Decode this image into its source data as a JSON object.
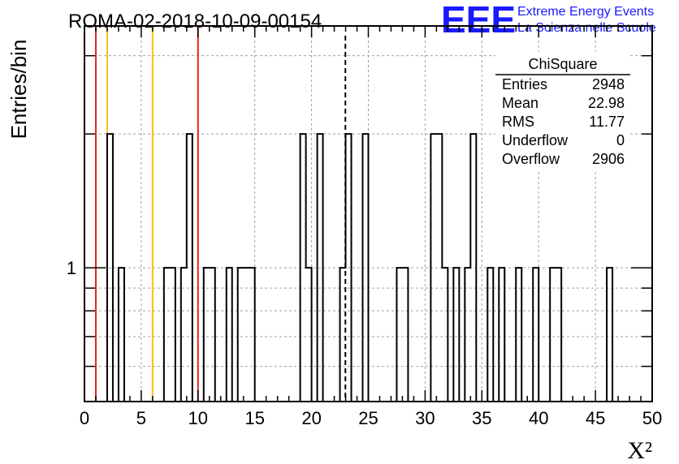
{
  "header": {
    "title": "ROMA-02-2018-10-09-00154",
    "logo_text": "EEE",
    "logo_line1": "Extreme Energy Events",
    "logo_line2": "La Scienza nelle Scuole"
  },
  "stats": {
    "name": "ChiSquare",
    "rows": [
      {
        "label": "Entries",
        "value": "2948"
      },
      {
        "label": "Mean",
        "value": "22.98"
      },
      {
        "label": "RMS",
        "value": "11.77"
      },
      {
        "label": "Underflow",
        "value": "0"
      },
      {
        "label": "Overflow",
        "value": "2906"
      }
    ]
  },
  "colors": {
    "histogram": "#000000",
    "red_line": "#e8261e",
    "yellow_line": "#f5c21b",
    "grid": "#a0a0a0"
  },
  "chart_data": {
    "type": "bar",
    "title": "ROMA-02-2018-10-09-00154",
    "xlabel": "X²",
    "ylabel": "Entries/bin",
    "xlim": [
      0,
      50
    ],
    "y_tick_labels": [
      "1"
    ],
    "x_tick_labels": [
      "0",
      "5",
      "10",
      "15",
      "20",
      "25",
      "30",
      "35",
      "40",
      "45",
      "50"
    ],
    "bin_width": 0.5,
    "grid": true,
    "bins": [
      {
        "x": 2.0,
        "count": 2
      },
      {
        "x": 3.0,
        "count": 1
      },
      {
        "x": 7.0,
        "count": 1
      },
      {
        "x": 7.5,
        "count": 1
      },
      {
        "x": 8.5,
        "count": 1
      },
      {
        "x": 9.0,
        "count": 2
      },
      {
        "x": 10.5,
        "count": 1
      },
      {
        "x": 11.0,
        "count": 1
      },
      {
        "x": 12.5,
        "count": 1
      },
      {
        "x": 13.5,
        "count": 1
      },
      {
        "x": 14.0,
        "count": 1
      },
      {
        "x": 14.5,
        "count": 1
      },
      {
        "x": 19.0,
        "count": 2
      },
      {
        "x": 19.5,
        "count": 1
      },
      {
        "x": 20.5,
        "count": 2
      },
      {
        "x": 22.5,
        "count": 1
      },
      {
        "x": 23.0,
        "count": 2
      },
      {
        "x": 24.5,
        "count": 2
      },
      {
        "x": 27.5,
        "count": 1
      },
      {
        "x": 28.0,
        "count": 1
      },
      {
        "x": 30.5,
        "count": 2
      },
      {
        "x": 31.0,
        "count": 2
      },
      {
        "x": 31.5,
        "count": 1
      },
      {
        "x": 32.5,
        "count": 1
      },
      {
        "x": 33.5,
        "count": 1
      },
      {
        "x": 34.0,
        "count": 2
      },
      {
        "x": 35.5,
        "count": 1
      },
      {
        "x": 36.5,
        "count": 1
      },
      {
        "x": 38.0,
        "count": 1
      },
      {
        "x": 39.5,
        "count": 1
      },
      {
        "x": 41.0,
        "count": 1
      },
      {
        "x": 41.5,
        "count": 1
      },
      {
        "x": 46.0,
        "count": 1
      }
    ],
    "vertical_lines": [
      {
        "x": 1,
        "color": "red"
      },
      {
        "x": 2,
        "color": "yellow"
      },
      {
        "x": 6,
        "color": "yellow"
      },
      {
        "x": 10,
        "color": "red"
      },
      {
        "x": 22.98,
        "color": "black",
        "style": "dashed"
      }
    ]
  }
}
